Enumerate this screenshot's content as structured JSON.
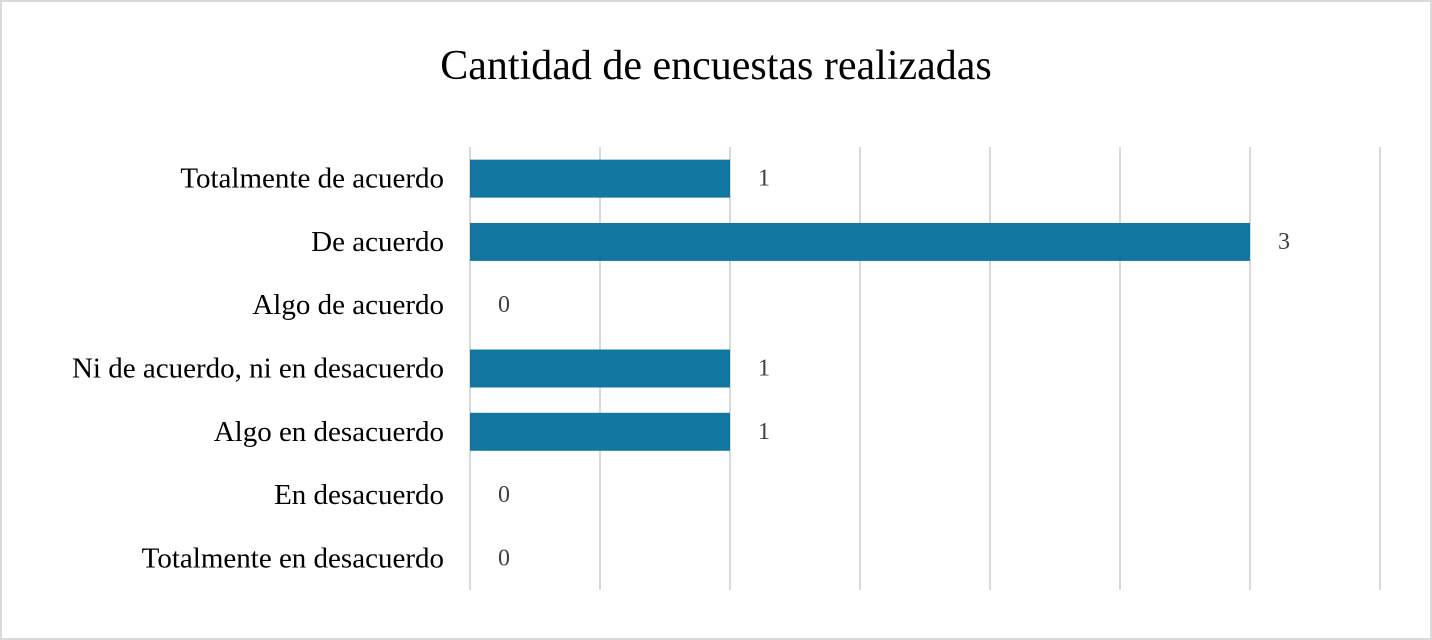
{
  "chart_data": {
    "type": "bar",
    "orientation": "horizontal",
    "title": "Cantidad de encuestas realizadas",
    "categories": [
      "Totalmente de acuerdo",
      "De acuerdo",
      "Algo de acuerdo",
      "Ni de acuerdo, ni en desacuerdo",
      "Algo en desacuerdo",
      "En desacuerdo",
      "Totalmente en desacuerdo"
    ],
    "values": [
      1,
      3,
      0,
      1,
      1,
      0,
      0
    ],
    "xlim": [
      0,
      3.5
    ],
    "grid_step": 0.5,
    "grid": true,
    "legend": "none",
    "xlabel": "",
    "ylabel": "",
    "colors": {
      "bar": "#1176a0",
      "grid": "#d9d9d9",
      "border": "#d9d9d9"
    }
  }
}
